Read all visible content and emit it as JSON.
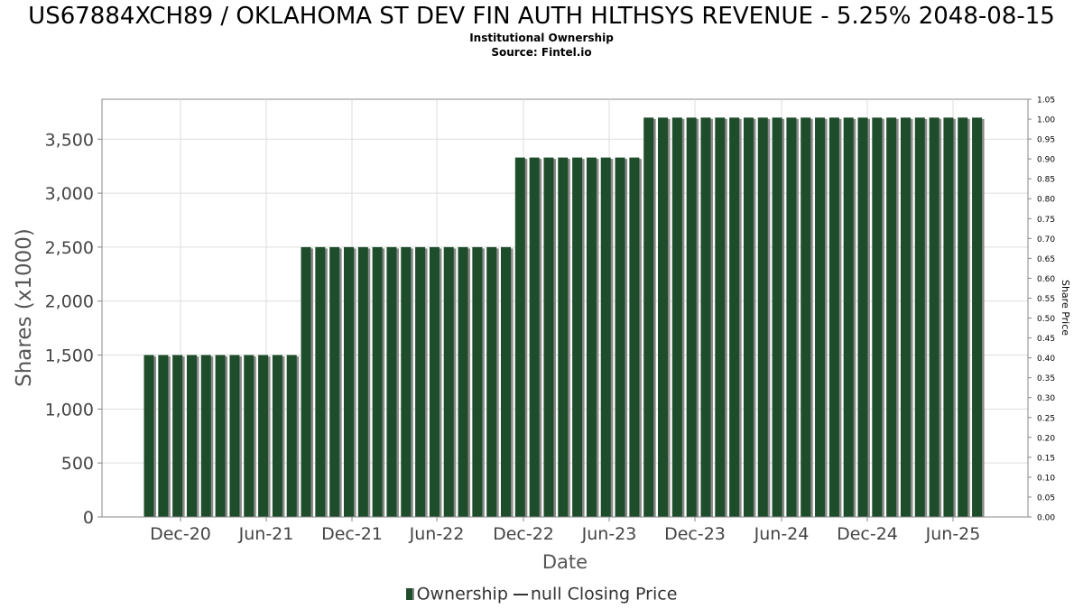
{
  "header": {
    "title": "US67884XCH89 / OKLAHOMA ST DEV FIN AUTH HLTHSYS REVENUE - 5.25% 2048-08-15",
    "subtitle": "Institutional Ownership",
    "source": "Source: Fintel.io"
  },
  "legend": {
    "ownership_label": "Ownership",
    "closing_price_label": "null Closing Price"
  },
  "colors": {
    "bar": "#1e4d2b",
    "bar_shadow": "#8a8a8a",
    "grid": "#dddddd"
  },
  "chart_data": {
    "type": "bar",
    "title": "US67884XCH89 / OKLAHOMA ST DEV FIN AUTH HLTHSYS REVENUE - 5.25% 2048-08-15",
    "xlabel": "Date",
    "ylabel": "Shares (x1000)",
    "y2label": "Share Price",
    "ylim": [
      0,
      3870
    ],
    "y2lim": [
      0,
      1.05
    ],
    "yticks": [
      0,
      500,
      1000,
      1500,
      2000,
      2500,
      3000,
      3500
    ],
    "yticklabels": [
      "0",
      "500",
      "1,000",
      "1,500",
      "2,000",
      "2,500",
      "3,000",
      "3,500"
    ],
    "y2ticklabels": [
      "0.00",
      "0.05",
      "0.10",
      "0.15",
      "0.20",
      "0.25",
      "0.30",
      "0.35",
      "0.40",
      "0.45",
      "0.50",
      "0.55",
      "0.60",
      "0.65",
      "0.70",
      "0.75",
      "0.80",
      "0.85",
      "0.90",
      "0.95",
      "1.00",
      "1.05"
    ],
    "xticklabels": [
      "Dec-20",
      "Jun-21",
      "Dec-21",
      "Jun-22",
      "Dec-22",
      "Jun-23",
      "Dec-23",
      "Jun-24",
      "Dec-24",
      "Jun-25"
    ],
    "grid": true,
    "legend_position": "bottom",
    "series": [
      {
        "name": "Ownership",
        "values": [
          1500,
          1500,
          1500,
          1500,
          1500,
          1500,
          1500,
          1500,
          1500,
          1500,
          1500,
          2500,
          2500,
          2500,
          2500,
          2500,
          2500,
          2500,
          2500,
          2500,
          2500,
          2500,
          2500,
          2500,
          2500,
          2500,
          3330,
          3330,
          3330,
          3330,
          3330,
          3330,
          3330,
          3330,
          3330,
          3700,
          3700,
          3700,
          3700,
          3700,
          3700,
          3700,
          3700,
          3700,
          3700,
          3700,
          3700,
          3700,
          3700,
          3700,
          3700,
          3700,
          3700,
          3700,
          3700,
          3700,
          3700,
          3700,
          3700
        ]
      }
    ]
  }
}
